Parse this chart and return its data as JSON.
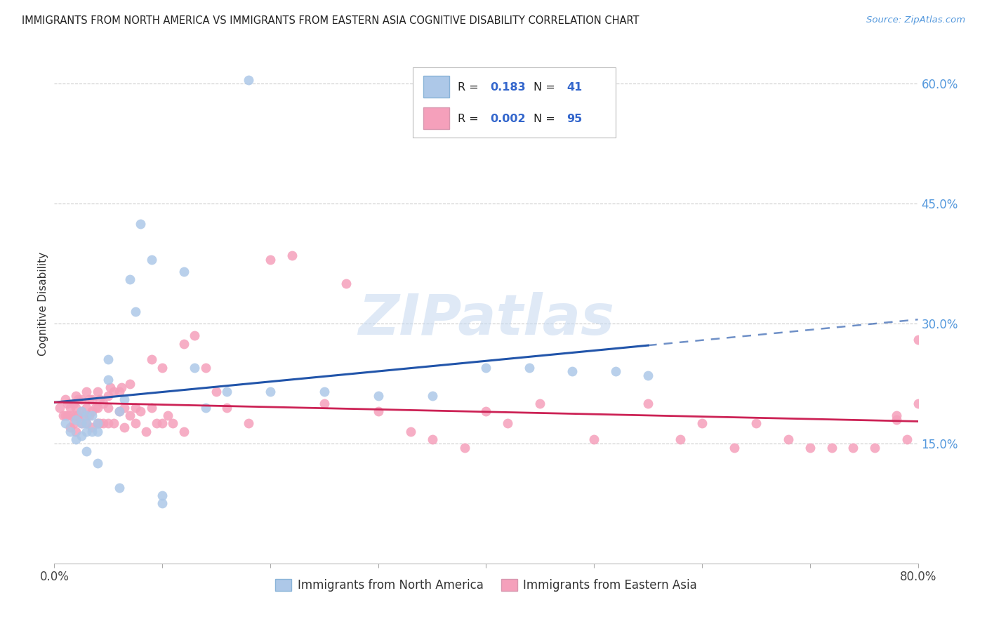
{
  "title": "IMMIGRANTS FROM NORTH AMERICA VS IMMIGRANTS FROM EASTERN ASIA COGNITIVE DISABILITY CORRELATION CHART",
  "source": "Source: ZipAtlas.com",
  "ylabel": "Cognitive Disability",
  "legend1_label": "Immigrants from North America",
  "legend2_label": "Immigrants from Eastern Asia",
  "r1": "0.183",
  "n1": "41",
  "r2": "0.002",
  "n2": "95",
  "color_blue": "#adc8e8",
  "color_pink": "#f5a0bb",
  "line_blue": "#2255aa",
  "line_pink": "#cc2255",
  "watermark": "ZIPatlas",
  "xmin": 0.0,
  "xmax": 0.8,
  "ymin": 0.0,
  "ymax": 0.65,
  "right_ytick_vals": [
    0.6,
    0.45,
    0.3,
    0.15
  ],
  "right_ytick_labels": [
    "60.0%",
    "45.0%",
    "30.0%",
    "15.0%"
  ],
  "blue_x": [
    0.01,
    0.015,
    0.02,
    0.02,
    0.025,
    0.025,
    0.025,
    0.03,
    0.03,
    0.03,
    0.03,
    0.035,
    0.035,
    0.04,
    0.04,
    0.04,
    0.05,
    0.05,
    0.06,
    0.06,
    0.065,
    0.07,
    0.075,
    0.08,
    0.09,
    0.1,
    0.1,
    0.12,
    0.13,
    0.14,
    0.16,
    0.18,
    0.2,
    0.25,
    0.3,
    0.35,
    0.4,
    0.44,
    0.48,
    0.52,
    0.55
  ],
  "blue_y": [
    0.175,
    0.165,
    0.18,
    0.155,
    0.19,
    0.175,
    0.16,
    0.185,
    0.175,
    0.165,
    0.14,
    0.185,
    0.165,
    0.175,
    0.165,
    0.125,
    0.255,
    0.23,
    0.19,
    0.095,
    0.205,
    0.355,
    0.315,
    0.425,
    0.38,
    0.075,
    0.085,
    0.365,
    0.245,
    0.195,
    0.215,
    0.605,
    0.215,
    0.215,
    0.21,
    0.21,
    0.245,
    0.245,
    0.24,
    0.24,
    0.235
  ],
  "pink_x": [
    0.005,
    0.008,
    0.01,
    0.01,
    0.012,
    0.012,
    0.015,
    0.015,
    0.015,
    0.018,
    0.018,
    0.02,
    0.02,
    0.02,
    0.02,
    0.022,
    0.022,
    0.025,
    0.025,
    0.025,
    0.028,
    0.03,
    0.03,
    0.03,
    0.032,
    0.032,
    0.035,
    0.035,
    0.035,
    0.038,
    0.04,
    0.04,
    0.04,
    0.042,
    0.042,
    0.045,
    0.045,
    0.05,
    0.05,
    0.05,
    0.052,
    0.055,
    0.055,
    0.06,
    0.06,
    0.062,
    0.065,
    0.065,
    0.07,
    0.07,
    0.075,
    0.075,
    0.08,
    0.085,
    0.09,
    0.09,
    0.095,
    0.1,
    0.1,
    0.105,
    0.11,
    0.12,
    0.12,
    0.13,
    0.14,
    0.15,
    0.16,
    0.18,
    0.2,
    0.22,
    0.25,
    0.27,
    0.3,
    0.33,
    0.35,
    0.38,
    0.4,
    0.42,
    0.45,
    0.5,
    0.55,
    0.58,
    0.6,
    0.63,
    0.65,
    0.68,
    0.7,
    0.72,
    0.74,
    0.76,
    0.78,
    0.79,
    0.8,
    0.8,
    0.78
  ],
  "pink_y": [
    0.195,
    0.185,
    0.205,
    0.185,
    0.2,
    0.185,
    0.195,
    0.185,
    0.17,
    0.2,
    0.175,
    0.21,
    0.195,
    0.185,
    0.165,
    0.205,
    0.185,
    0.205,
    0.19,
    0.175,
    0.185,
    0.215,
    0.195,
    0.175,
    0.205,
    0.185,
    0.205,
    0.19,
    0.17,
    0.195,
    0.215,
    0.195,
    0.175,
    0.205,
    0.175,
    0.2,
    0.175,
    0.21,
    0.195,
    0.175,
    0.22,
    0.215,
    0.175,
    0.215,
    0.19,
    0.22,
    0.195,
    0.17,
    0.225,
    0.185,
    0.195,
    0.175,
    0.19,
    0.165,
    0.255,
    0.195,
    0.175,
    0.245,
    0.175,
    0.185,
    0.175,
    0.275,
    0.165,
    0.285,
    0.245,
    0.215,
    0.195,
    0.175,
    0.38,
    0.385,
    0.2,
    0.35,
    0.19,
    0.165,
    0.155,
    0.145,
    0.19,
    0.175,
    0.2,
    0.155,
    0.2,
    0.155,
    0.175,
    0.145,
    0.175,
    0.155,
    0.145,
    0.145,
    0.145,
    0.145,
    0.185,
    0.155,
    0.28,
    0.2,
    0.18
  ]
}
